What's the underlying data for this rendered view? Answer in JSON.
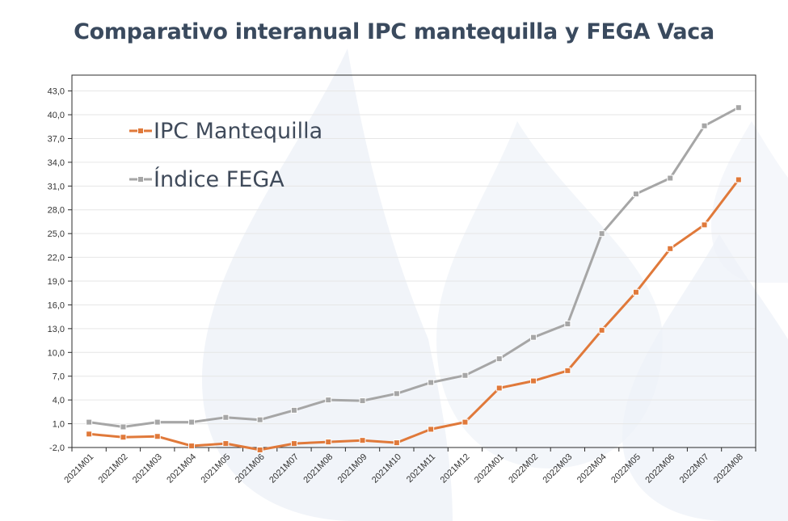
{
  "title": "Comparativo interanual IPC mantequilla y FEGA Vaca",
  "chart_data": {
    "type": "line",
    "categories": [
      "2021M01",
      "2021M02",
      "2021M03",
      "2021M04",
      "2021M05",
      "2021M06",
      "2021M07",
      "2021M08",
      "2021M09",
      "2021M10",
      "2021M11",
      "2021M12",
      "2022M01",
      "2022M02",
      "2022M03",
      "2022M04",
      "2022M05",
      "2022M06",
      "2022M07",
      "2022M08"
    ],
    "ylim": [
      -2.0,
      45.0
    ],
    "yticks": [
      "-2,0",
      "1,0",
      "4,0",
      "7,0",
      "10,0",
      "13,0",
      "16,0",
      "19,0",
      "22,0",
      "25,0",
      "28,0",
      "31,0",
      "34,0",
      "37,0",
      "40,0",
      "43,0"
    ],
    "ytick_values": [
      -2,
      1,
      4,
      7,
      10,
      13,
      16,
      19,
      22,
      25,
      28,
      31,
      34,
      37,
      40,
      43
    ],
    "grid": true,
    "legend_position": "top-left",
    "series": [
      {
        "name": "IPC Mantequilla",
        "color": "#e0793a",
        "marker": "square",
        "values": [
          -0.3,
          -0.7,
          -0.6,
          -1.8,
          -1.5,
          -2.3,
          -1.5,
          -1.3,
          -1.1,
          -1.4,
          0.3,
          1.2,
          5.5,
          6.4,
          7.7,
          12.8,
          17.6,
          23.1,
          26.1,
          31.8
        ]
      },
      {
        "name": "Índice FEGA",
        "color": "#a6a6a6",
        "marker": "square",
        "values": [
          1.2,
          0.6,
          1.2,
          1.2,
          1.8,
          1.5,
          2.7,
          4.0,
          3.9,
          4.8,
          6.2,
          7.1,
          9.2,
          11.9,
          13.6,
          25.0,
          30.0,
          32.0,
          38.6,
          40.9
        ]
      }
    ]
  }
}
